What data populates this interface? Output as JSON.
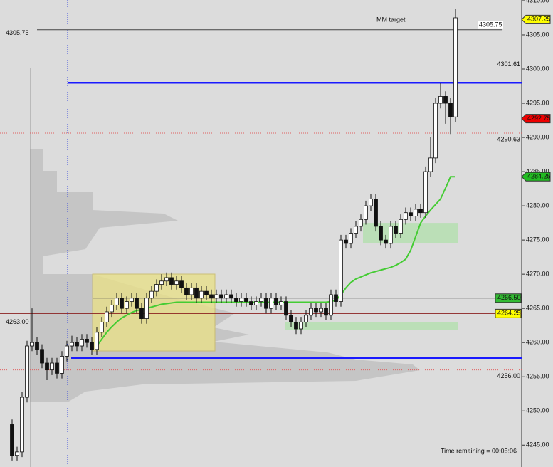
{
  "chart_data": {
    "type": "candlestick",
    "ylim": [
      4241.8,
      4310.1
    ],
    "yticks": [
      {
        "value": 4245,
        "label": "4245.00"
      },
      {
        "value": 4250,
        "label": "4250.00"
      },
      {
        "value": 4255,
        "label": "4255.00"
      },
      {
        "value": 4260,
        "label": "4260.00"
      },
      {
        "value": 4265,
        "label": "4265.00"
      },
      {
        "value": 4270,
        "label": "4270.00"
      },
      {
        "value": 4275,
        "label": "4275.00"
      },
      {
        "value": 4280,
        "label": "4280.00"
      },
      {
        "value": 4285,
        "label": "4285.00"
      },
      {
        "value": 4290,
        "label": "4290.00"
      },
      {
        "value": 4295,
        "label": "4295.00"
      },
      {
        "value": 4300,
        "label": "4300.00"
      },
      {
        "value": 4305,
        "label": "4305.00"
      },
      {
        "value": 4310,
        "label": "4310.00"
      }
    ],
    "up_color": "#ffffff",
    "down_color": "#111111",
    "open": [
      4248,
      4243.5,
      4244,
      4252,
      4259.5,
      4260,
      4259,
      4257,
      4256,
      4257,
      4255.5,
      4258,
      4259.5,
      4260,
      4259.5,
      4260.5,
      4260,
      4259,
      4261.5,
      4263,
      4264.5,
      4265.5,
      4266.5,
      4265,
      4266,
      4266.5,
      4265,
      4263.5,
      4266.5,
      4267.5,
      4268.5,
      4269,
      4269.5,
      4268.5,
      4269,
      4268,
      4267,
      4268,
      4266.5,
      4267.5,
      4267,
      4266.5,
      4267,
      4266.5,
      4267,
      4266.5,
      4266,
      4266.5,
      4266,
      4265.5,
      4266,
      4266.5,
      4265,
      4266.5,
      4265.5,
      4266,
      4264,
      4263,
      4262,
      4263,
      4264,
      4265,
      4264.5,
      4265,
      4264,
      4267,
      4266,
      4275,
      4274.5,
      4276,
      4277,
      4278,
      4280,
      4281,
      4277,
      4275,
      4274.5,
      4277,
      4276,
      4278,
      4279,
      4278.5,
      4279.5,
      4279,
      4285,
      4287,
      4295,
      4296,
      4295,
      4293
    ],
    "high": [
      4248.75,
      4244.75,
      4252.75,
      4260.25,
      4265,
      4260.75,
      4259.75,
      4257.75,
      4257.75,
      4257.75,
      4258.75,
      4260.25,
      4261,
      4260.75,
      4261.25,
      4261.25,
      4260.75,
      4262.25,
      4263.75,
      4265.25,
      4266.25,
      4267.25,
      4267.25,
      4266.75,
      4267.25,
      4267.25,
      4265.75,
      4267.25,
      4268.25,
      4269.25,
      4270,
      4270.25,
      4270.25,
      4269.75,
      4269.75,
      4268.75,
      4268.75,
      4268.75,
      4268.25,
      4268.25,
      4267.75,
      4267.75,
      4267.75,
      4267.75,
      4267.75,
      4267.25,
      4267.25,
      4267.25,
      4266.75,
      4266.75,
      4267.25,
      4267.25,
      4267.25,
      4267.25,
      4266.75,
      4266.75,
      4264.75,
      4263.75,
      4263.75,
      4264.75,
      4265.75,
      4265.75,
      4265.75,
      4265.75,
      4267.75,
      4267.75,
      4275.75,
      4275.75,
      4276.75,
      4277.75,
      4278.75,
      4280.75,
      4281.75,
      4281.75,
      4277.75,
      4275.75,
      4277.75,
      4277.75,
      4278.75,
      4279.75,
      4279.75,
      4280.25,
      4280.25,
      4285.75,
      4290,
      4295.75,
      4298,
      4296.75,
      4295.75,
      4308.75
    ],
    "low": [
      4242.75,
      4242.75,
      4243.25,
      4251.25,
      4258.75,
      4258.25,
      4256.25,
      4254.5,
      4255.25,
      4254.75,
      4254.75,
      4257.25,
      4258.75,
      4258.75,
      4258.75,
      4259.25,
      4258.25,
      4258.25,
      4260.75,
      4262.25,
      4263.75,
      4264.75,
      4264.25,
      4264.25,
      4265.25,
      4264.25,
      4262.75,
      4262.75,
      4265.75,
      4266.75,
      4267.75,
      4268.25,
      4267.75,
      4267.75,
      4267.25,
      4266.25,
      4266.25,
      4265.75,
      4265.75,
      4266.25,
      4265.75,
      4265.75,
      4265.75,
      4265.75,
      4265.75,
      4265.25,
      4265.25,
      4265.25,
      4264.75,
      4264.75,
      4265.25,
      4264.25,
      4264.25,
      4264.75,
      4264.75,
      4263.25,
      4262.25,
      4261.25,
      4261.25,
      4262.25,
      4263.25,
      4263.75,
      4263.75,
      4263.25,
      4263.25,
      4265.25,
      4265.25,
      4273.75,
      4273.75,
      4275.25,
      4276.25,
      4277.25,
      4279.25,
      4276.25,
      4274.25,
      4273.75,
      4273.75,
      4275.25,
      4275.25,
      4277.25,
      4277.75,
      4277.75,
      4278.25,
      4278.25,
      4284.25,
      4286.25,
      4294.25,
      4292,
      4290.5,
      4292.25
    ],
    "close": [
      4243.5,
      4244,
      4252,
      4259.5,
      4260,
      4259,
      4257,
      4256,
      4257,
      4255.5,
      4258,
      4259.5,
      4260,
      4259.5,
      4260.5,
      4260,
      4259,
      4261.5,
      4263,
      4264.5,
      4265.5,
      4266.5,
      4265,
      4266,
      4266.5,
      4265,
      4263.5,
      4266.5,
      4267.5,
      4268.5,
      4269,
      4269.5,
      4268.5,
      4269,
      4268,
      4267,
      4268,
      4266.5,
      4267.5,
      4267,
      4266.5,
      4267,
      4266.5,
      4267,
      4266.5,
      4266,
      4266.5,
      4266,
      4265.5,
      4266,
      4266.5,
      4265,
      4266.5,
      4265.5,
      4266,
      4264,
      4263,
      4262,
      4263,
      4264,
      4265,
      4264.5,
      4265,
      4264,
      4267,
      4266,
      4275,
      4274.5,
      4276,
      4277,
      4278,
      4280,
      4281,
      4277,
      4275,
      4274.5,
      4277,
      4276,
      4278,
      4279,
      4278.5,
      4279.5,
      4279,
      4285,
      4287,
      4295,
      4296,
      4295,
      4293,
      4307.5
    ],
    "ema": {
      "color": "#44cc33",
      "values": [
        null,
        null,
        null,
        null,
        null,
        null,
        null,
        null,
        null,
        null,
        null,
        null,
        null,
        null,
        null,
        null,
        null,
        4259.5,
        4260.5,
        4261.5,
        4262.3,
        4263,
        4263.6,
        4264,
        4264.4,
        4264.7,
        4264.8,
        4265,
        4265.2,
        4265.4,
        4265.6,
        4265.7,
        4265.8,
        4265.9,
        4265.9,
        4265.9,
        4265.9,
        4265.9,
        4265.9,
        4265.9,
        4265.9,
        4265.9,
        4265.9,
        4265.9,
        4265.9,
        4265.9,
        4265.9,
        4265.9,
        4265.9,
        4265.9,
        4265.9,
        4265.9,
        4265.9,
        4265.9,
        4265.9,
        4265.9,
        4265.9,
        4265.9,
        4265.9,
        4265.9,
        4265.9,
        4265.9,
        4265.9,
        4265.9,
        4266,
        4266.2,
        4267,
        4268,
        4268.8,
        4269.3,
        4269.6,
        4269.9,
        4270.2,
        4270.4,
        4270.6,
        4270.8,
        4271,
        4271.3,
        4271.7,
        4272.2,
        4273.5,
        4275.5,
        4277.5,
        4278.5,
        4279.4,
        4280.2,
        4281,
        4282.6,
        4284.25,
        4284.25
      ]
    },
    "levels": [
      {
        "value": 4305.75,
        "color": "#444444",
        "style": "solid"
      },
      {
        "value": 4301.61,
        "color": "#e06060",
        "style": "dotted"
      },
      {
        "value": 4298,
        "color": "#1a1aff",
        "style": "thick"
      },
      {
        "value": 4290.63,
        "color": "#e06060",
        "style": "dotted"
      },
      {
        "value": 4266.5,
        "label": "4266.50",
        "color": "#555555",
        "style": "solid"
      },
      {
        "value": 4264.25,
        "color": "#8b2020",
        "style": "solid"
      },
      {
        "value": 4257.75,
        "color": "#1a1aff",
        "style": "thick"
      },
      {
        "value": 4256,
        "label": "4256.00",
        "color": "#e06060",
        "style": "dotted"
      },
      {
        "value": 4263,
        "label": "4263.00",
        "color": "#cc8800",
        "style": "none"
      }
    ],
    "zones": [
      {
        "from": 4274.5,
        "to": 4277.5,
        "color": "#b5dfb0"
      },
      {
        "from": 4261.8,
        "to": 4263,
        "color": "#b5dfb0"
      }
    ],
    "price_tags": [
      {
        "value": 4307.25,
        "color": "#ffff00"
      },
      {
        "value": 4292.75,
        "color": "#ee0000"
      },
      {
        "value": 4284.25,
        "color": "#22bb22"
      }
    ],
    "annotations": [
      "MM target",
      "Time remaining = 00:05:06"
    ]
  }
}
